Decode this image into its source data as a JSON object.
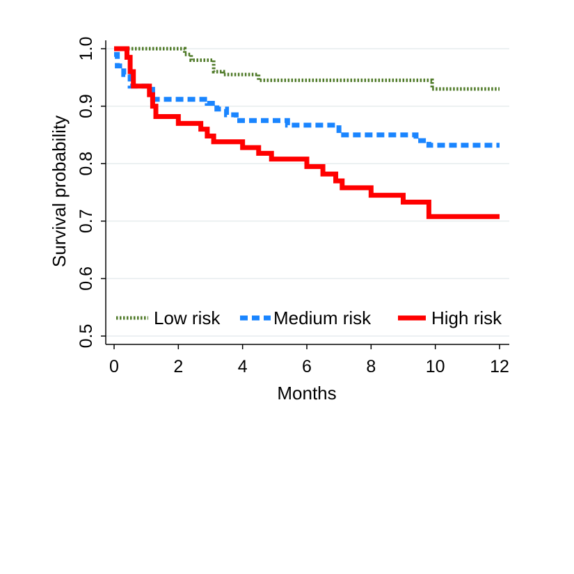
{
  "chart_data": {
    "type": "line",
    "title": "",
    "xlabel": "Months",
    "ylabel": "Survival probability",
    "xlim": [
      0,
      12
    ],
    "ylim": [
      0.5,
      1.0
    ],
    "x_ticks": [
      "0",
      "2",
      "4",
      "6",
      "8",
      "10",
      "12"
    ],
    "y_ticks": [
      "0.5",
      "0.6",
      "0.7",
      "0.8",
      "0.9",
      "1.0"
    ],
    "grid": true,
    "legend_placement": "bottom-inside",
    "series": [
      {
        "name": "Low risk",
        "color": "#4f7a28",
        "style": "dotted",
        "points": [
          [
            0,
            1.0
          ],
          [
            2.0,
            1.0
          ],
          [
            2.2,
            0.99
          ],
          [
            2.4,
            0.98
          ],
          [
            3.1,
            0.96
          ],
          [
            3.4,
            0.955
          ],
          [
            4.5,
            0.945
          ],
          [
            9.7,
            0.945
          ],
          [
            9.9,
            0.93
          ],
          [
            12,
            0.93
          ]
        ]
      },
      {
        "name": "Medium risk",
        "color": "#1a85ff",
        "style": "dashed",
        "points": [
          [
            0,
            0.99
          ],
          [
            0.1,
            0.97
          ],
          [
            0.3,
            0.955
          ],
          [
            0.5,
            0.935
          ],
          [
            1.0,
            0.935
          ],
          [
            1.2,
            0.912
          ],
          [
            2.5,
            0.912
          ],
          [
            2.9,
            0.905
          ],
          [
            3.2,
            0.895
          ],
          [
            3.5,
            0.885
          ],
          [
            3.8,
            0.875
          ],
          [
            5.0,
            0.875
          ],
          [
            5.4,
            0.867
          ],
          [
            6.9,
            0.867
          ],
          [
            7.0,
            0.85
          ],
          [
            9.0,
            0.85
          ],
          [
            9.4,
            0.84
          ],
          [
            9.8,
            0.832
          ],
          [
            12,
            0.832
          ]
        ]
      },
      {
        "name": "High risk",
        "color": "#ff0000",
        "style": "solid",
        "points": [
          [
            0,
            1.0
          ],
          [
            0.3,
            1.0
          ],
          [
            0.4,
            0.985
          ],
          [
            0.5,
            0.96
          ],
          [
            0.6,
            0.935
          ],
          [
            1.0,
            0.935
          ],
          [
            1.1,
            0.92
          ],
          [
            1.2,
            0.9
          ],
          [
            1.3,
            0.882
          ],
          [
            1.8,
            0.882
          ],
          [
            2.0,
            0.87
          ],
          [
            2.5,
            0.87
          ],
          [
            2.7,
            0.86
          ],
          [
            2.9,
            0.848
          ],
          [
            3.1,
            0.838
          ],
          [
            3.8,
            0.838
          ],
          [
            4.0,
            0.828
          ],
          [
            4.5,
            0.818
          ],
          [
            4.9,
            0.808
          ],
          [
            5.7,
            0.808
          ],
          [
            6.0,
            0.795
          ],
          [
            6.5,
            0.782
          ],
          [
            6.9,
            0.77
          ],
          [
            7.1,
            0.758
          ],
          [
            7.8,
            0.758
          ],
          [
            8.0,
            0.745
          ],
          [
            8.9,
            0.745
          ],
          [
            9.0,
            0.733
          ],
          [
            9.7,
            0.733
          ],
          [
            9.8,
            0.708
          ],
          [
            12,
            0.708
          ]
        ]
      }
    ]
  }
}
